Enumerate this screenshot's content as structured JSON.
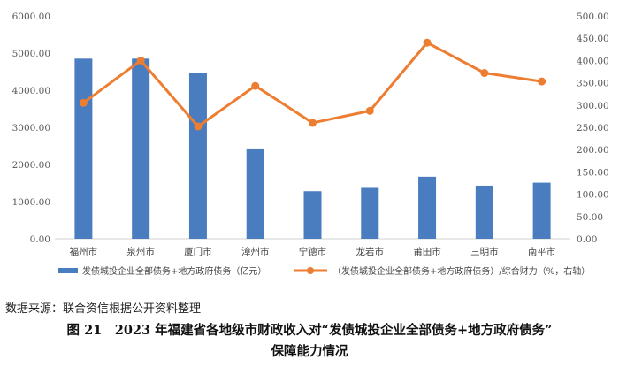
{
  "chart_data": {
    "type": "bar+line",
    "categories": [
      "福州市",
      "泉州市",
      "厦门市",
      "漳州市",
      "宁德市",
      "龙岩市",
      "莆田市",
      "三明市",
      "南平市"
    ],
    "series": [
      {
        "name": "发债城投企业全部债务+地方政府债务（亿元）",
        "type": "bar",
        "axis": "left",
        "color": "#4a7cc0",
        "values": [
          4850,
          4850,
          4470,
          2430,
          1280,
          1370,
          1670,
          1430,
          1510
        ]
      },
      {
        "name": "（发债城投企业全部债务+地方政府债务）/综合财力（%，右轴）",
        "type": "line",
        "axis": "right",
        "color": "#ed7d31",
        "values": [
          305,
          400,
          252,
          343,
          260,
          287,
          440,
          372,
          353
        ]
      }
    ],
    "y_left": {
      "min": 0,
      "max": 6000,
      "step": 1000,
      "tick_labels": [
        "0.00",
        "1000.00",
        "2000.00",
        "3000.00",
        "4000.00",
        "5000.00",
        "6000.00"
      ]
    },
    "y_right": {
      "min": 0,
      "max": 500,
      "step": 50,
      "tick_labels": [
        "0.00",
        "50.00",
        "100.00",
        "150.00",
        "200.00",
        "250.00",
        "300.00",
        "350.00",
        "400.00",
        "450.00",
        "500.00"
      ]
    },
    "grid": false,
    "legend_position": "bottom"
  },
  "source_note": "数据来源：联合资信根据公开资料整理",
  "caption_line1": "图 21　2023 年福建省各地级市财政收入对“发债城投企业全部债务+地方政府债务”",
  "caption_line2": "保障能力情况"
}
